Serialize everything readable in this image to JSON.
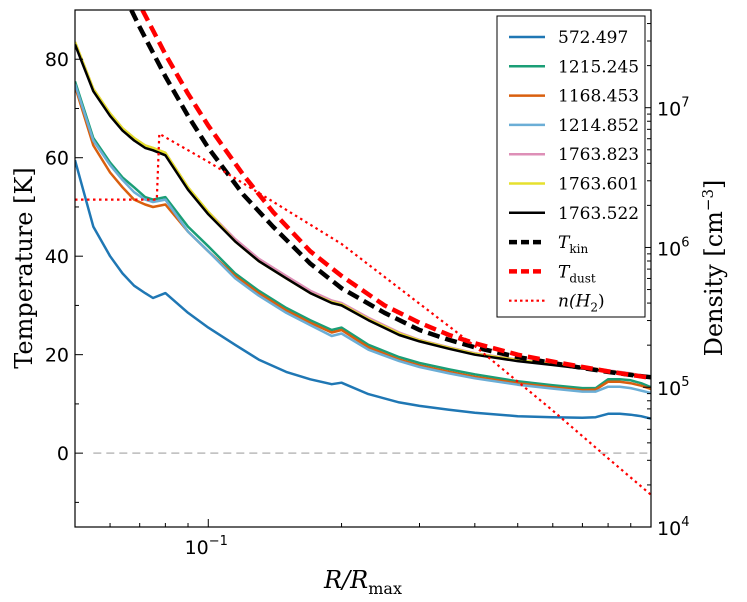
{
  "chart_data": {
    "type": "line",
    "title": "",
    "xlabel": "R/R_max",
    "xlabel_parts": {
      "main": "R/R",
      "sub": "max"
    },
    "ylabel_left": "Temperature  [K]",
    "ylabel_right": {
      "main": "Density  [cm",
      "sup": "−3",
      "close": "]"
    },
    "x_scale": "log",
    "xlim": [
      0.05,
      1.0
    ],
    "x_tick": {
      "value": 0.1,
      "base": "10",
      "exp": "−1"
    },
    "ylim_left": [
      -15,
      90
    ],
    "y_ticks_left": [
      0,
      20,
      40,
      60,
      80
    ],
    "y_scale_right": "log",
    "ylim_right": [
      10000,
      50000000
    ],
    "y_ticks_right": [
      {
        "value": 10000,
        "base": "10",
        "exp": "4"
      },
      {
        "value": 100000,
        "base": "10",
        "exp": "5"
      },
      {
        "value": 1000000,
        "base": "10",
        "exp": "6"
      },
      {
        "value": 10000000,
        "base": "10",
        "exp": "7"
      }
    ],
    "grid": false,
    "legend_position": "top-right",
    "zero_line": {
      "y": 0,
      "color": "#bbbbbb",
      "style": "dashed"
    },
    "series": [
      {
        "name": "572.497",
        "color": "#1f77b4",
        "style": "solid",
        "axis": "left",
        "x": [
          0.05,
          0.055,
          0.06,
          0.064,
          0.068,
          0.072,
          0.075,
          0.08,
          0.09,
          0.1,
          0.115,
          0.13,
          0.15,
          0.17,
          0.19,
          0.2,
          0.23,
          0.27,
          0.3,
          0.35,
          0.4,
          0.5,
          0.6,
          0.7,
          0.75,
          0.8,
          0.85,
          0.9,
          0.95,
          1.0
        ],
        "y": [
          59.5,
          46,
          40,
          36.5,
          34,
          32.5,
          31.5,
          32.5,
          28.5,
          25.5,
          22,
          19,
          16.5,
          15,
          14,
          14.3,
          12,
          10.3,
          9.6,
          8.8,
          8.2,
          7.5,
          7.3,
          7.2,
          7.3,
          8,
          8,
          7.8,
          7.5,
          7.0
        ]
      },
      {
        "name": "1215.245",
        "color": "#1a9e76",
        "style": "solid",
        "axis": "left",
        "x": [
          0.05,
          0.055,
          0.06,
          0.064,
          0.068,
          0.072,
          0.075,
          0.08,
          0.09,
          0.1,
          0.115,
          0.13,
          0.15,
          0.17,
          0.19,
          0.2,
          0.23,
          0.27,
          0.3,
          0.35,
          0.4,
          0.5,
          0.6,
          0.7,
          0.75,
          0.8,
          0.85,
          0.9,
          0.95,
          1.0
        ],
        "y": [
          75.5,
          64,
          59,
          56,
          54,
          52,
          51.5,
          52,
          46,
          42,
          36.5,
          33,
          29.5,
          27,
          25,
          25.5,
          22,
          19.5,
          18.3,
          17,
          16,
          14.6,
          13.8,
          13.2,
          13.2,
          15,
          15,
          14.8,
          14.2,
          13.4
        ]
      },
      {
        "name": "1168.453",
        "color": "#d95f0e",
        "style": "solid",
        "axis": "left",
        "x": [
          0.05,
          0.055,
          0.06,
          0.064,
          0.068,
          0.072,
          0.075,
          0.08,
          0.09,
          0.1,
          0.115,
          0.13,
          0.15,
          0.17,
          0.19,
          0.2,
          0.23,
          0.27,
          0.3,
          0.35,
          0.4,
          0.5,
          0.6,
          0.7,
          0.75,
          0.8,
          0.85,
          0.9,
          0.95,
          1.0
        ],
        "y": [
          74.5,
          62.5,
          57,
          54,
          51.5,
          50.5,
          50,
          50.5,
          45,
          41,
          36,
          32.5,
          29,
          26.5,
          24.5,
          25,
          21.5,
          19,
          17.8,
          16.5,
          15.5,
          14.2,
          13.4,
          12.8,
          12.9,
          14.5,
          14.5,
          14.2,
          13.7,
          13.0
        ]
      },
      {
        "name": "1214.852",
        "color": "#6baed6",
        "style": "solid",
        "axis": "left",
        "x": [
          0.05,
          0.055,
          0.06,
          0.064,
          0.068,
          0.072,
          0.075,
          0.08,
          0.09,
          0.1,
          0.115,
          0.13,
          0.15,
          0.17,
          0.19,
          0.2,
          0.23,
          0.27,
          0.3,
          0.35,
          0.4,
          0.5,
          0.6,
          0.7,
          0.75,
          0.8,
          0.85,
          0.9,
          0.95,
          1.0
        ],
        "y": [
          75,
          63.5,
          58.5,
          55.5,
          53,
          51.5,
          51,
          51.5,
          45,
          41,
          35.5,
          32,
          28.5,
          26,
          23.8,
          24.3,
          21,
          18.7,
          17.5,
          16.2,
          15.2,
          13.9,
          13.1,
          12.5,
          12.5,
          13.5,
          13.5,
          13.2,
          12.7,
          12.2
        ]
      },
      {
        "name": "1763.823",
        "color": "#de8fb7",
        "style": "solid",
        "axis": "left",
        "x": [
          0.05,
          0.055,
          0.06,
          0.064,
          0.068,
          0.072,
          0.075,
          0.08,
          0.09,
          0.1,
          0.115,
          0.13,
          0.15,
          0.17,
          0.19,
          0.2,
          0.23,
          0.27,
          0.3,
          0.35,
          0.4,
          0.5,
          0.6,
          0.7,
          0.75,
          0.8,
          0.85,
          0.9,
          0.95,
          1.0
        ],
        "y": [
          83.5,
          74,
          69,
          66,
          64,
          62.5,
          62,
          61,
          54,
          49,
          43.5,
          39.5,
          36,
          33,
          31,
          30.5,
          27.5,
          24.5,
          23,
          21.5,
          20.3,
          19,
          18.2,
          17.5,
          17.2,
          16.8,
          16.5,
          16.2,
          15.8,
          15.5
        ]
      },
      {
        "name": "1763.601",
        "color": "#e6e02e",
        "style": "solid",
        "axis": "left",
        "x": [
          0.05,
          0.055,
          0.06,
          0.064,
          0.068,
          0.072,
          0.075,
          0.08,
          0.09,
          0.1,
          0.115,
          0.13,
          0.15,
          0.17,
          0.19,
          0.2,
          0.23,
          0.27,
          0.3,
          0.35,
          0.4,
          0.5,
          0.6,
          0.7,
          0.75,
          0.8,
          0.85,
          0.9,
          0.95,
          1.0
        ],
        "y": [
          83.5,
          74,
          69,
          66,
          64,
          62.5,
          62,
          61,
          54,
          49,
          43,
          39,
          35.5,
          32.5,
          30.7,
          30.2,
          27.2,
          24.3,
          22.9,
          21.4,
          20.2,
          18.9,
          18.1,
          17.4,
          17.1,
          16.7,
          16.4,
          16.1,
          15.7,
          15.4
        ]
      },
      {
        "name": "1763.522",
        "color": "#000000",
        "style": "solid",
        "axis": "left",
        "x": [
          0.05,
          0.055,
          0.06,
          0.064,
          0.068,
          0.072,
          0.075,
          0.08,
          0.09,
          0.1,
          0.115,
          0.13,
          0.15,
          0.17,
          0.19,
          0.2,
          0.23,
          0.27,
          0.3,
          0.35,
          0.4,
          0.5,
          0.6,
          0.7,
          0.75,
          0.8,
          0.85,
          0.9,
          0.95,
          1.0
        ],
        "y": [
          83,
          73.5,
          68.5,
          65.5,
          63.5,
          62,
          61.5,
          60.5,
          53.5,
          48.5,
          43,
          39,
          35.5,
          32.5,
          30.5,
          30,
          27,
          24,
          22.7,
          21.2,
          20,
          18.7,
          17.9,
          17.2,
          16.9,
          16.6,
          16.3,
          16,
          15.6,
          15.3
        ]
      },
      {
        "name": "T_kin",
        "label_main": "T",
        "label_sub": "kin",
        "color": "#000000",
        "style": "dashed",
        "axis": "left",
        "x": [
          0.067,
          0.07,
          0.08,
          0.09,
          0.1,
          0.12,
          0.14,
          0.17,
          0.2,
          0.25,
          0.3,
          0.35,
          0.4,
          0.5,
          0.6,
          0.7,
          0.8,
          0.9,
          1.0
        ],
        "y": [
          90,
          86.5,
          76.5,
          68.5,
          62,
          52.5,
          46,
          38.5,
          33.5,
          28.5,
          25,
          23,
          21.5,
          19.5,
          18.3,
          17.3,
          16.5,
          15.9,
          15.4
        ]
      },
      {
        "name": "T_dust",
        "label_main": "T",
        "label_sub": "dust",
        "color": "#ff0000",
        "style": "dashed",
        "axis": "left",
        "x": [
          0.071,
          0.08,
          0.09,
          0.1,
          0.12,
          0.14,
          0.17,
          0.2,
          0.25,
          0.3,
          0.35,
          0.4,
          0.5,
          0.6,
          0.7,
          0.8,
          0.9,
          1.0
        ],
        "y": [
          90,
          81,
          73,
          66.5,
          56.5,
          49,
          41,
          36,
          30,
          26.5,
          24,
          22.3,
          20,
          18.6,
          17.5,
          16.6,
          15.9,
          15.3
        ]
      },
      {
        "name": "n(H_2)",
        "label_main": "n(H",
        "label_sub": "2",
        "label_close": ")",
        "color": "#ff0000",
        "style": "dotted",
        "axis": "right",
        "x": [
          0.05,
          0.0765,
          0.0765,
          0.0775,
          0.1,
          0.2,
          0.4,
          0.6,
          0.8,
          1.0
        ],
        "y": [
          2200000,
          2200000,
          2200000,
          6500000,
          4100000,
          1060000,
          197000,
          68000,
          31000,
          17000
        ]
      }
    ]
  }
}
